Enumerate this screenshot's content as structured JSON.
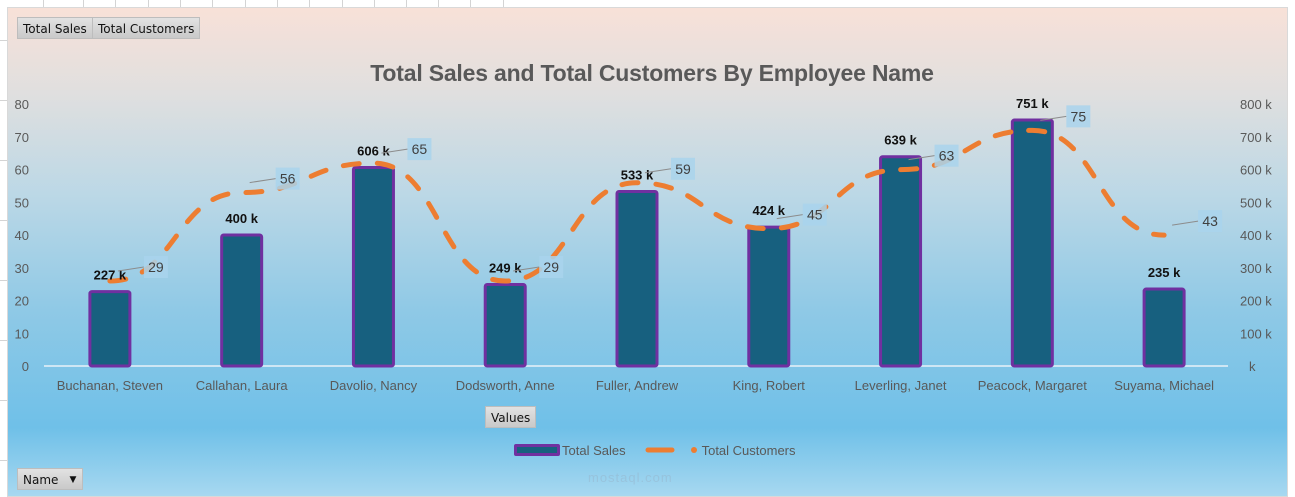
{
  "field_buttons": {
    "total_sales": "Total Sales",
    "total_customers": "Total Customers",
    "values": "Values",
    "name": "Name"
  },
  "watermark": "mostaql.com",
  "colors": {
    "bar_fill": "#17607f",
    "bar_border": "#7030a0",
    "line": "#ed7d31",
    "label_box": "#a9d4ec"
  },
  "chart_data": {
    "type": "bar",
    "combo": "bar + dashed line (secondary axis)",
    "title": "Total Sales and Total Customers By Employee Name",
    "xlabel": "",
    "categories": [
      "Buchanan, Steven",
      "Callahan, Laura",
      "Davolio, Nancy",
      "Dodsworth, Anne",
      "Fuller, Andrew",
      "King, Robert",
      "Leverling, Janet",
      "Peacock, Margaret",
      "Suyama, Michael"
    ],
    "series": [
      {
        "name": "Total Sales",
        "type": "bar",
        "axis": "left-scale (bars plotted in thousands)",
        "values": [
          227,
          400,
          606,
          249,
          533,
          424,
          639,
          751,
          235
        ],
        "labels": [
          "227 k",
          "400 k",
          "606 k",
          "249 k",
          "533 k",
          "424 k",
          "639 k",
          "751 k",
          "235 k"
        ]
      },
      {
        "name": "Total Customers",
        "type": "line",
        "style": "dashed",
        "values": [
          29,
          56,
          65,
          29,
          59,
          45,
          63,
          75,
          43
        ],
        "labels": [
          "29",
          "56",
          "65",
          "29",
          "59",
          "45",
          "63",
          "75",
          "43"
        ]
      }
    ],
    "left_axis": {
      "ylim": [
        0,
        80
      ],
      "ticks": [
        "0",
        "10",
        "20",
        "30",
        "40",
        "50",
        "60",
        "70",
        "80"
      ]
    },
    "right_axis": {
      "ylim": [
        0,
        800
      ],
      "ticks": [
        "k",
        "100 k",
        "200 k",
        "300 k",
        "400 k",
        "500 k",
        "600 k",
        "700 k",
        "800 k"
      ]
    },
    "legend": {
      "position": "bottom",
      "entries": [
        "Total Sales",
        "Total Customers"
      ]
    },
    "grid": false
  }
}
